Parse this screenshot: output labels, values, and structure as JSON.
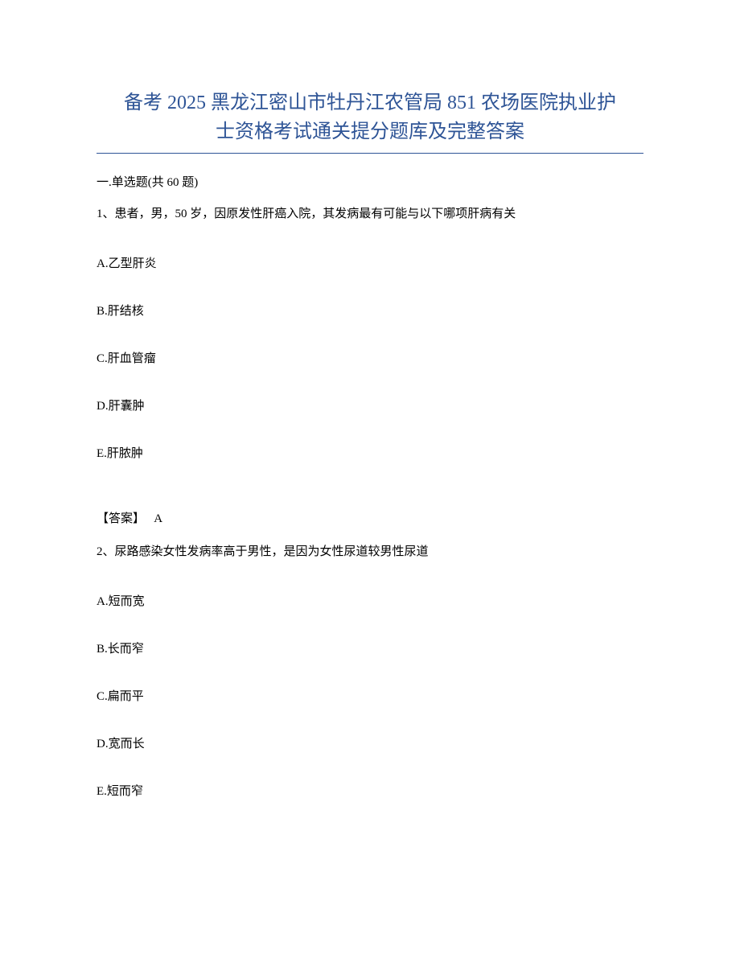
{
  "colors": {
    "title_color": "#2e5496",
    "text_color": "#000000",
    "background_color": "#ffffff",
    "underline_color": "#2e5496"
  },
  "typography": {
    "title_fontsize": 24,
    "body_fontsize": 15,
    "font_family": "SimSun"
  },
  "title": {
    "line1": "备考 2025 黑龙江密山市牡丹江农管局 851 农场医院执业护",
    "line2": "士资格考试通关提分题库及完整答案"
  },
  "section_header": "一.单选题(共 60 题)",
  "questions": [
    {
      "number": "1、",
      "text": "患者，男，50 岁，因原发性肝癌入院，其发病最有可能与以下哪项肝病有关",
      "options": [
        {
          "label": "A.",
          "text": "乙型肝炎"
        },
        {
          "label": "B.",
          "text": "肝结核"
        },
        {
          "label": "C.",
          "text": "肝血管瘤"
        },
        {
          "label": "D.",
          "text": "肝囊肿"
        },
        {
          "label": "E.",
          "text": "肝脓肿"
        }
      ],
      "answer_label": "【答案】",
      "answer_value": "A"
    },
    {
      "number": "2、",
      "text": "尿路感染女性发病率高于男性，是因为女性尿道较男性尿道",
      "options": [
        {
          "label": "A.",
          "text": "短而宽"
        },
        {
          "label": "B.",
          "text": "长而窄"
        },
        {
          "label": "C.",
          "text": "扁而平"
        },
        {
          "label": "D.",
          "text": "宽而长"
        },
        {
          "label": "E.",
          "text": "短而窄"
        }
      ]
    }
  ]
}
